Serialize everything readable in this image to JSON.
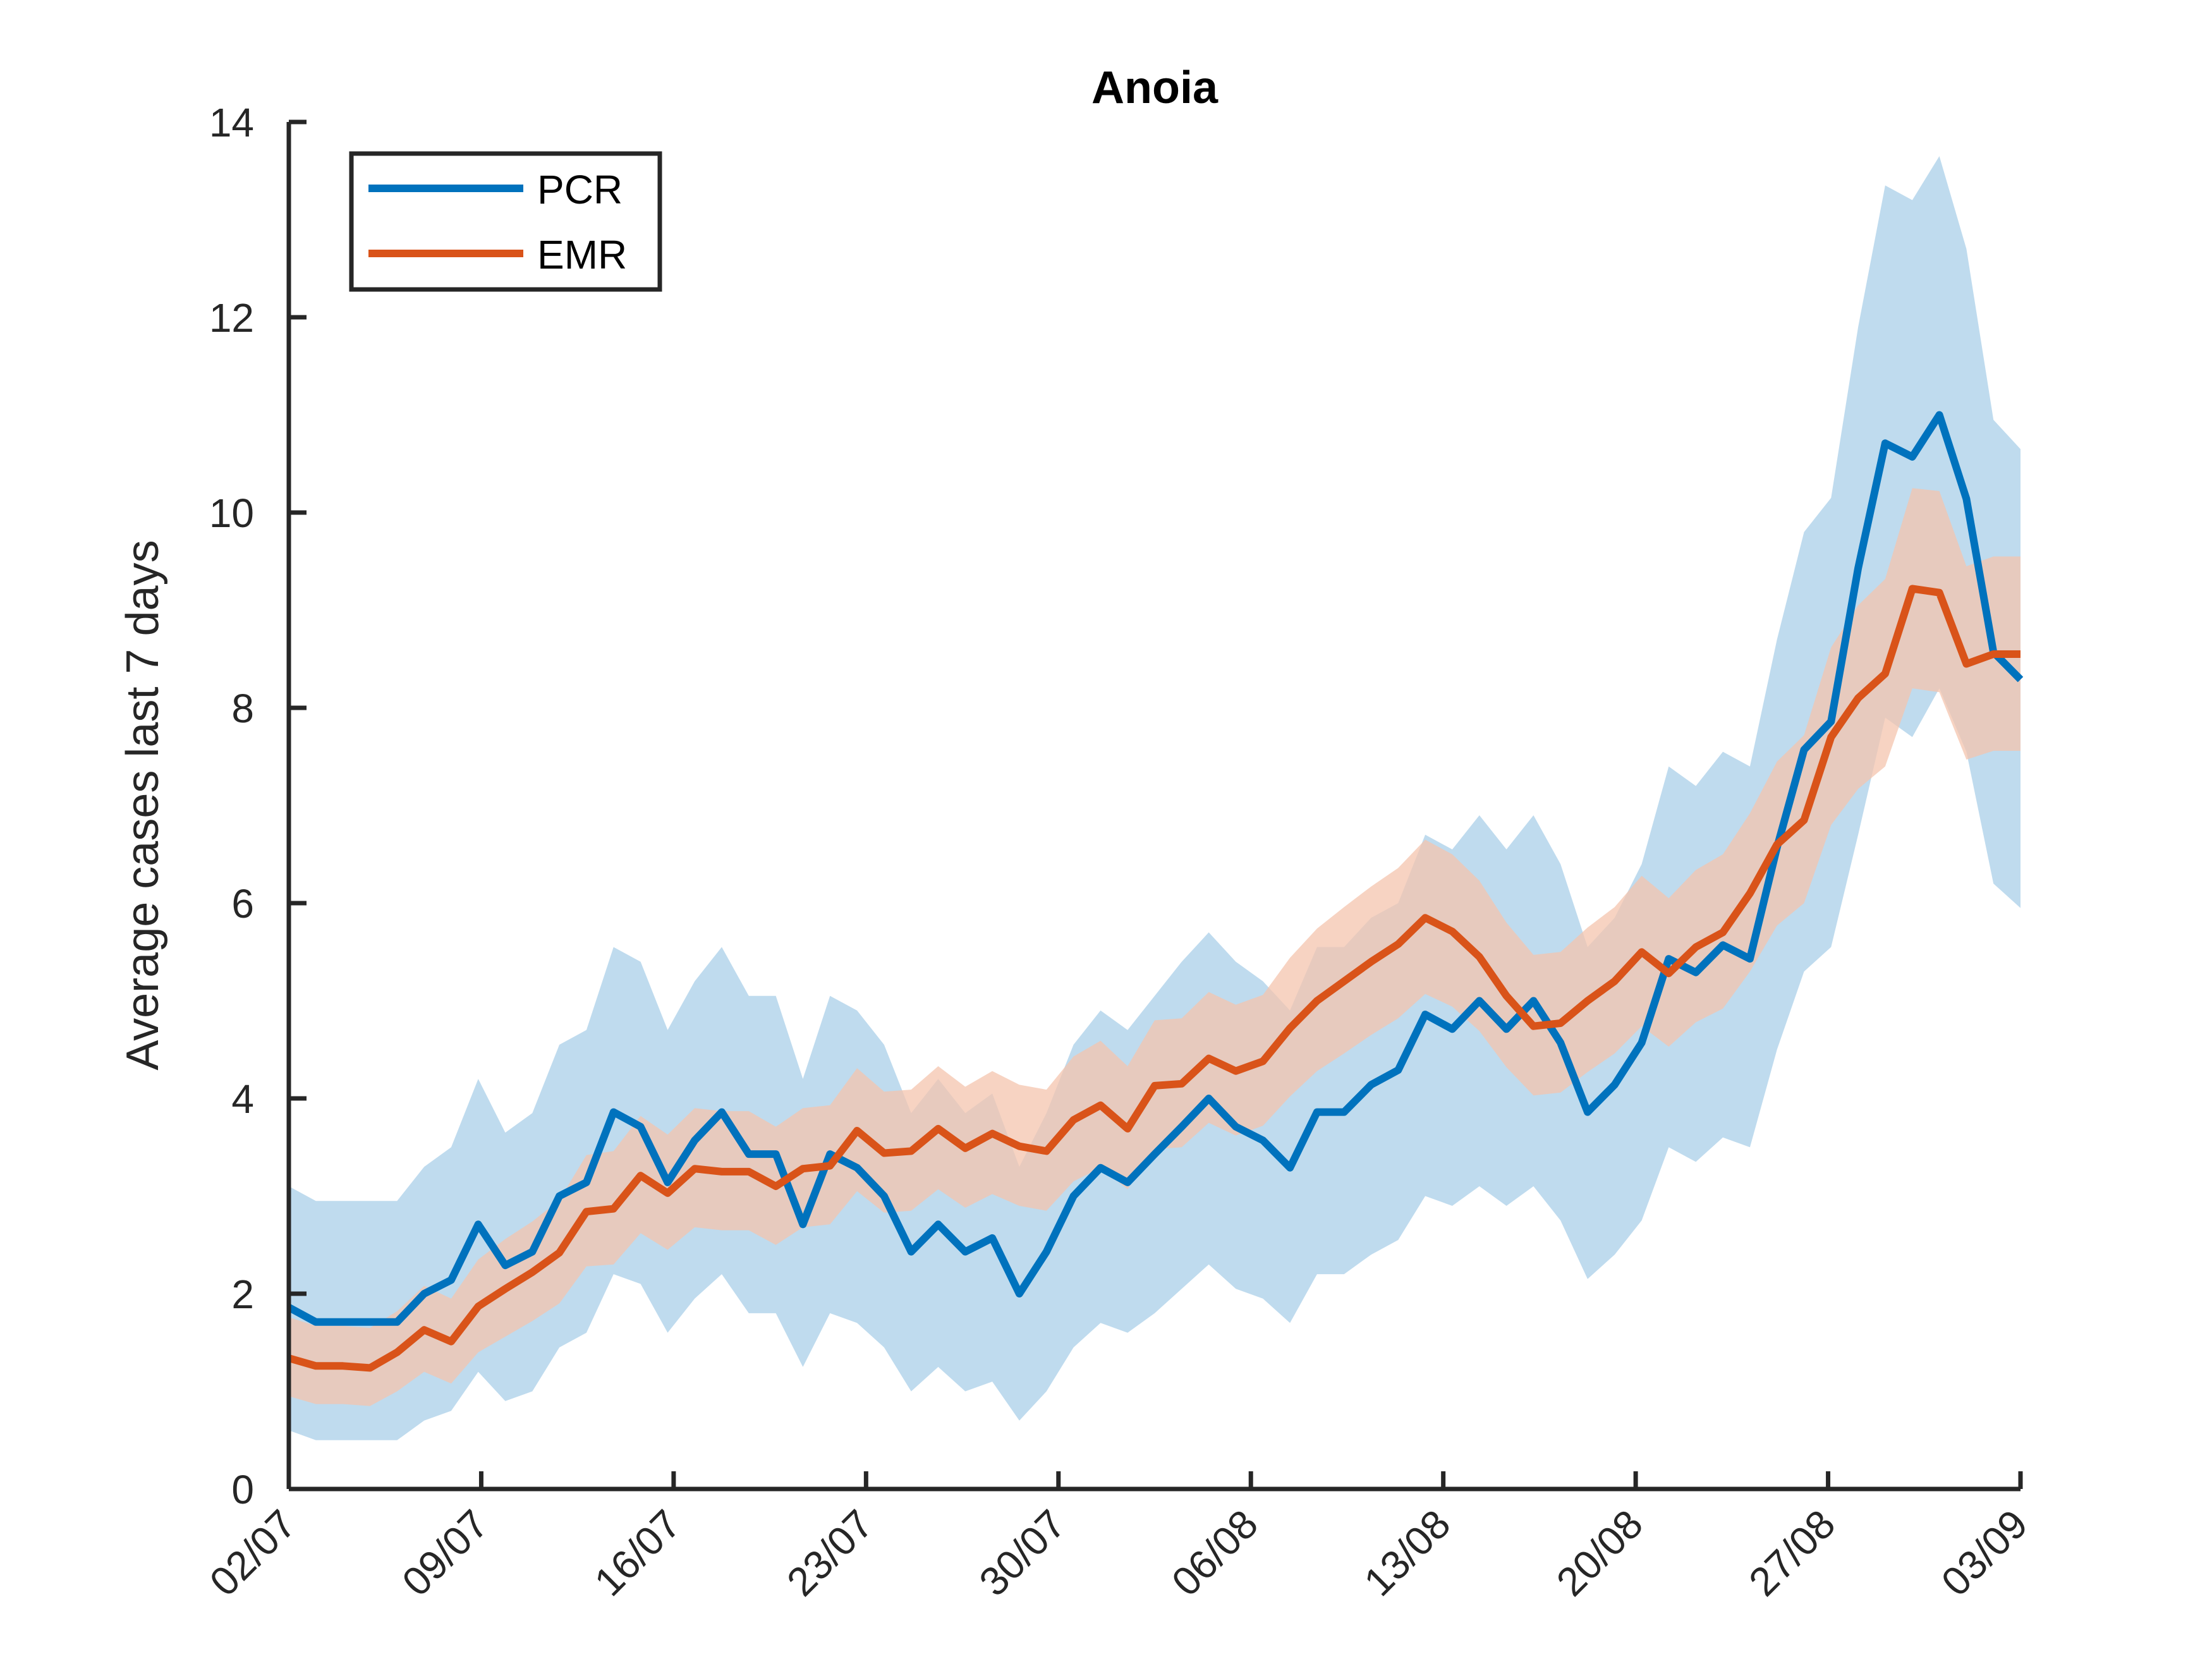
{
  "chart_data": {
    "type": "line",
    "title": "Anoia",
    "xlabel": "",
    "ylabel": "Average cases last 7 days",
    "ylim": [
      0,
      14
    ],
    "yticks": [
      0,
      2,
      4,
      6,
      8,
      10,
      12,
      14
    ],
    "x_day_range": [
      0,
      63
    ],
    "xticks": [
      {
        "day": 0,
        "label": "02/07"
      },
      {
        "day": 7,
        "label": "09/07"
      },
      {
        "day": 14,
        "label": "16/07"
      },
      {
        "day": 21,
        "label": "23/07"
      },
      {
        "day": 28,
        "label": "30/07"
      },
      {
        "day": 35,
        "label": "06/08"
      },
      {
        "day": 42,
        "label": "13/08"
      },
      {
        "day": 49,
        "label": "20/08"
      },
      {
        "day": 56,
        "label": "27/08"
      },
      {
        "day": 63,
        "label": "03/09"
      }
    ],
    "legend_position": "top-left",
    "grid": false,
    "series": [
      {
        "name": "PCR",
        "color": "#0072BD",
        "band_color": "#a6cde8",
        "values": [
          1.86,
          1.71,
          1.71,
          1.71,
          1.71,
          2.0,
          2.14,
          2.71,
          2.29,
          2.43,
          3.0,
          3.14,
          3.86,
          3.71,
          3.14,
          3.57,
          3.86,
          3.43,
          3.43,
          2.71,
          3.43,
          3.29,
          3.0,
          2.43,
          2.71,
          2.43,
          2.57,
          2.0,
          2.43,
          3.0,
          3.29,
          3.14,
          3.43,
          3.71,
          4.0,
          3.71,
          3.57,
          3.29,
          3.86,
          3.86,
          4.14,
          4.29,
          4.86,
          4.71,
          5.0,
          4.71,
          5.0,
          4.57,
          3.86,
          4.14,
          4.57,
          5.43,
          5.29,
          5.57,
          5.43,
          6.57,
          7.57,
          7.86,
          9.43,
          10.71,
          10.57,
          11.0,
          10.14,
          8.57,
          8.29
        ],
        "lower": [
          0.6,
          0.5,
          0.5,
          0.5,
          0.5,
          0.7,
          0.8,
          1.2,
          0.9,
          1.0,
          1.45,
          1.6,
          2.2,
          2.1,
          1.6,
          1.95,
          2.2,
          1.8,
          1.8,
          1.25,
          1.8,
          1.7,
          1.45,
          1.0,
          1.25,
          1.0,
          1.1,
          0.7,
          1.0,
          1.45,
          1.7,
          1.6,
          1.8,
          2.05,
          2.3,
          2.05,
          1.95,
          1.7,
          2.2,
          2.2,
          2.4,
          2.55,
          3.0,
          2.9,
          3.1,
          2.9,
          3.1,
          2.75,
          2.15,
          2.4,
          2.75,
          3.5,
          3.35,
          3.6,
          3.5,
          4.5,
          5.3,
          5.55,
          6.7,
          7.9,
          7.7,
          8.2,
          7.55,
          6.2,
          5.95
        ],
        "upper": [
          3.1,
          2.95,
          2.95,
          2.95,
          2.95,
          3.3,
          3.5,
          4.2,
          3.65,
          3.85,
          4.55,
          4.7,
          5.55,
          5.4,
          4.7,
          5.2,
          5.55,
          5.05,
          5.05,
          4.2,
          5.05,
          4.9,
          4.55,
          3.85,
          4.2,
          3.85,
          4.05,
          3.3,
          3.85,
          4.55,
          4.9,
          4.7,
          5.05,
          5.4,
          5.7,
          5.4,
          5.2,
          4.9,
          5.55,
          5.55,
          5.85,
          6.0,
          6.7,
          6.55,
          6.9,
          6.55,
          6.9,
          6.4,
          5.55,
          5.85,
          6.4,
          7.4,
          7.2,
          7.55,
          7.4,
          8.7,
          9.8,
          10.15,
          11.9,
          13.35,
          13.2,
          13.65,
          12.7,
          10.95,
          10.65
        ]
      },
      {
        "name": "EMR",
        "color": "#D95319",
        "band_color": "#f4c4ad",
        "values": [
          1.34,
          1.26,
          1.26,
          1.24,
          1.4,
          1.63,
          1.51,
          1.87,
          2.05,
          2.22,
          2.42,
          2.84,
          2.87,
          3.21,
          3.03,
          3.28,
          3.25,
          3.25,
          3.1,
          3.28,
          3.31,
          3.67,
          3.44,
          3.46,
          3.69,
          3.49,
          3.64,
          3.51,
          3.46,
          3.78,
          3.93,
          3.69,
          4.13,
          4.15,
          4.41,
          4.28,
          4.38,
          4.72,
          5.0,
          5.2,
          5.4,
          5.58,
          5.85,
          5.71,
          5.45,
          5.05,
          4.74,
          4.77,
          5.0,
          5.2,
          5.5,
          5.28,
          5.55,
          5.7,
          6.1,
          6.6,
          6.85,
          7.7,
          8.1,
          8.35,
          9.22,
          9.18,
          8.45,
          8.55,
          8.55
        ],
        "lower": [
          0.95,
          0.87,
          0.87,
          0.85,
          1.0,
          1.2,
          1.08,
          1.4,
          1.56,
          1.72,
          1.9,
          2.28,
          2.3,
          2.62,
          2.45,
          2.68,
          2.65,
          2.65,
          2.5,
          2.68,
          2.71,
          3.05,
          2.83,
          2.85,
          3.07,
          2.88,
          3.02,
          2.9,
          2.85,
          3.15,
          3.29,
          3.07,
          3.48,
          3.5,
          3.75,
          3.62,
          3.72,
          4.02,
          4.28,
          4.46,
          4.65,
          4.82,
          5.07,
          4.94,
          4.69,
          4.32,
          4.03,
          4.06,
          4.27,
          4.46,
          4.74,
          4.53,
          4.78,
          4.92,
          5.3,
          5.77,
          6.0,
          6.8,
          7.17,
          7.4,
          8.2,
          8.16,
          7.47,
          7.56,
          7.56
        ],
        "upper": [
          1.76,
          1.67,
          1.67,
          1.65,
          1.82,
          2.08,
          1.95,
          2.35,
          2.56,
          2.74,
          2.96,
          3.42,
          3.46,
          3.82,
          3.63,
          3.9,
          3.87,
          3.87,
          3.71,
          3.9,
          3.93,
          4.31,
          4.07,
          4.09,
          4.33,
          4.12,
          4.28,
          4.14,
          4.09,
          4.43,
          4.59,
          4.33,
          4.8,
          4.82,
          5.09,
          4.96,
          5.06,
          5.44,
          5.74,
          5.96,
          6.17,
          6.36,
          6.65,
          6.5,
          6.23,
          5.8,
          5.47,
          5.5,
          5.75,
          5.96,
          6.28,
          6.05,
          6.34,
          6.5,
          6.92,
          7.45,
          7.72,
          8.62,
          9.05,
          9.32,
          10.25,
          10.22,
          9.45,
          9.55,
          9.55
        ]
      }
    ]
  }
}
